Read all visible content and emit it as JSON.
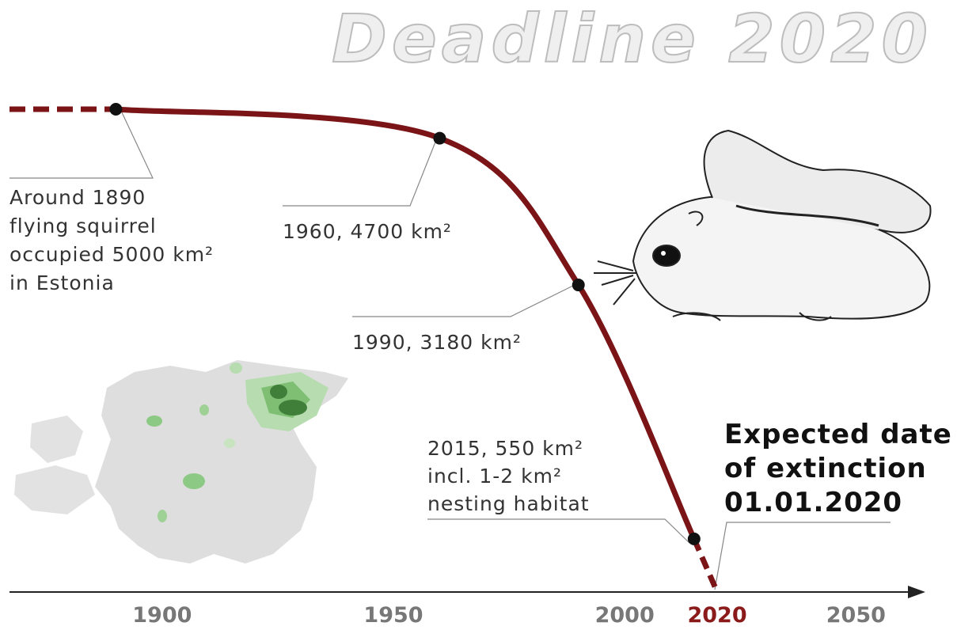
{
  "chart_data": {
    "type": "line",
    "title": "Deadline 2020",
    "x": [
      1890,
      1960,
      1990,
      2015
    ],
    "values": [
      5000,
      4700,
      3180,
      550
    ],
    "color": "#7a1416",
    "xlim": [
      1867,
      2065
    ],
    "ylim": [
      0,
      5000
    ],
    "xticks": [
      1900,
      1950,
      2000,
      2020,
      2050
    ],
    "xtick_colors": [
      "#777777",
      "#777777",
      "#777777",
      "#8b1a1a",
      "#777777"
    ],
    "annotations": [
      {
        "lines": [
          "Around 1890",
          "flying squirrel",
          "occupied 5000 km²",
          "in Estonia"
        ]
      },
      {
        "lines": [
          "1960, 4700 km²"
        ]
      },
      {
        "lines": [
          "1990, 3180 km²"
        ]
      },
      {
        "lines": [
          "2015, 550 km²",
          "incl. 1-2 km²",
          "nesting habitat"
        ]
      },
      {
        "lines": [
          "Expected date",
          "of extinction",
          "01.01.2020"
        ]
      }
    ]
  }
}
